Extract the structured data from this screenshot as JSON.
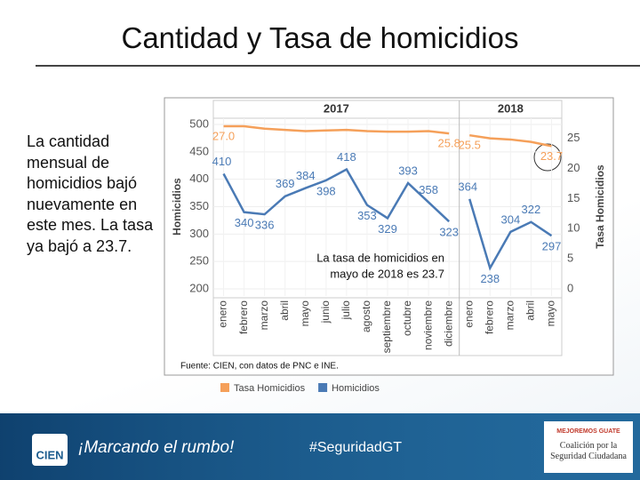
{
  "slide_title": "Cantidad y Tasa de homicidios",
  "body_text": "La cantidad mensual de homicidios bajó nuevamente en este mes. La tasa ya bajó a 23.7.",
  "footer": {
    "brand": "CIEN",
    "slogan": "¡Marcando el rumbo!",
    "hashtag": "#SeguridadGT",
    "partner_top": "MEJOREMOS GUATE",
    "partner_bottom": "Coalición por la Seguridad Ciudadana"
  },
  "chart_data": {
    "type": "line",
    "panels": [
      {
        "title": "2017",
        "categories": [
          "enero",
          "febrero",
          "marzo",
          "abril",
          "mayo",
          "junio",
          "julio",
          "agosto",
          "septiembre",
          "octubre",
          "noviembre",
          "diciembre"
        ]
      },
      {
        "title": "2018",
        "categories": [
          "enero",
          "febrero",
          "marzo",
          "abril",
          "mayo"
        ]
      }
    ],
    "series": [
      {
        "name": "Tasa Homicidios",
        "color": "#f5a05a",
        "axis": "y2",
        "values": [
          [
            27.0,
            27.0,
            26.6,
            26.4,
            26.2,
            26.3,
            26.4,
            26.2,
            26.1,
            26.1,
            26.2,
            25.8
          ],
          [
            25.5,
            25.0,
            24.8,
            24.4,
            23.7
          ]
        ],
        "value_labels": [
          [
            "27.0",
            null,
            null,
            null,
            null,
            null,
            null,
            null,
            null,
            null,
            null,
            "25.8"
          ],
          [
            "25.5",
            null,
            null,
            null,
            "23.7"
          ]
        ]
      },
      {
        "name": "Homicidios",
        "color": "#4a7ab5",
        "axis": "y",
        "values": [
          [
            410,
            340,
            336,
            369,
            384,
            398,
            418,
            353,
            329,
            393,
            358,
            323
          ],
          [
            364,
            238,
            304,
            322,
            297
          ]
        ]
      }
    ],
    "ylabel": "Homicidios",
    "y2label": "Tasa Homicidios",
    "ylim": [
      200,
      500
    ],
    "yticks": [
      200,
      250,
      300,
      350,
      400,
      450,
      500
    ],
    "y2lim": [
      0,
      27.3
    ],
    "y2ticks": [
      0,
      5,
      10,
      15,
      20,
      25
    ],
    "annotation": [
      "La tasa de homicidios en",
      "mayo de 2018 es 23.7"
    ],
    "source": "Fuente: CIEN, con datos de PNC e INE.",
    "grid": true
  }
}
